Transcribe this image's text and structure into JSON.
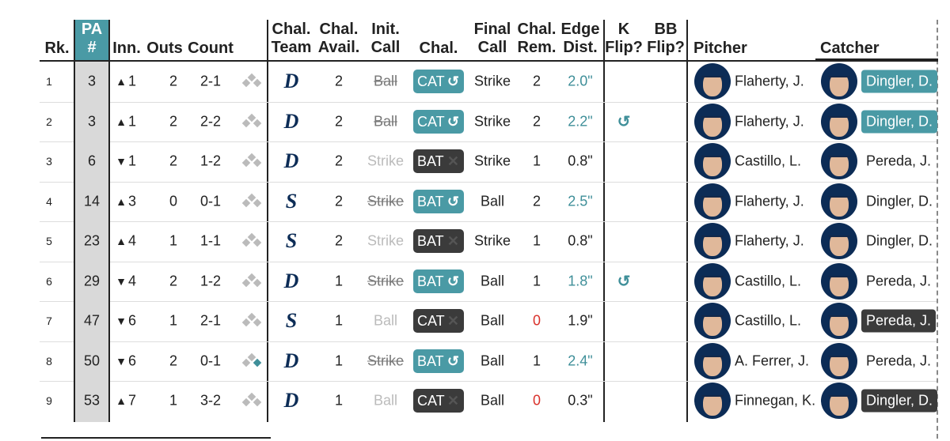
{
  "table": {
    "header": [
      {
        "key": "rk",
        "lines": [
          "Rk."
        ]
      },
      {
        "key": "pa",
        "lines": [
          "PA",
          "#"
        ]
      },
      {
        "key": "inn",
        "lines": [
          "Inn."
        ]
      },
      {
        "key": "outs",
        "lines": [
          "Outs"
        ]
      },
      {
        "key": "count",
        "lines": [
          "Count"
        ]
      },
      {
        "key": "team",
        "lines": [
          "Chal.",
          "Team"
        ]
      },
      {
        "key": "avail",
        "lines": [
          "Chal.",
          "Avail."
        ]
      },
      {
        "key": "init",
        "lines": [
          "Init.",
          "Call"
        ]
      },
      {
        "key": "chal",
        "lines": [
          "Chal."
        ]
      },
      {
        "key": "final",
        "lines": [
          "Final",
          "Call"
        ]
      },
      {
        "key": "rem",
        "lines": [
          "Chal.",
          "Rem."
        ]
      },
      {
        "key": "edge",
        "lines": [
          "Edge",
          "Dist."
        ]
      },
      {
        "key": "kflip",
        "lines": [
          "K",
          "Flip?"
        ]
      },
      {
        "key": "bbflip",
        "lines": [
          "BB",
          "Flip?"
        ]
      },
      {
        "key": "pitcher",
        "lines": [
          "Pitcher"
        ]
      },
      {
        "key": "catcher",
        "lines": [
          "Catcher"
        ]
      }
    ],
    "rows": [
      {
        "rk": 1,
        "pa": 3,
        "half": "▲",
        "inn": 1,
        "outs": 2,
        "count": "2-1",
        "runner_on_first": false,
        "team": "D",
        "avail": 2,
        "init": "Ball",
        "init_struck": true,
        "chal": "CAT",
        "chal_icon": "↺",
        "overturned": true,
        "final": "Strike",
        "rem": 2,
        "edge": "2.0\"",
        "kflip": null,
        "bbflip": null,
        "pitcher": "Flaherty, J.",
        "catcher": "Dingler, D.",
        "catcher_highlight": "teal"
      },
      {
        "rk": 2,
        "pa": 3,
        "half": "▲",
        "inn": 1,
        "outs": 2,
        "count": "2-2",
        "runner_on_first": false,
        "team": "D",
        "avail": 2,
        "init": "Ball",
        "init_struck": true,
        "chal": "CAT",
        "chal_icon": "↺",
        "overturned": true,
        "final": "Strike",
        "rem": 2,
        "edge": "2.2\"",
        "kflip": "↺",
        "bbflip": null,
        "pitcher": "Flaherty, J.",
        "catcher": "Dingler, D.",
        "catcher_highlight": "teal"
      },
      {
        "rk": 3,
        "pa": 6,
        "half": "▼",
        "inn": 1,
        "outs": 2,
        "count": "1-2",
        "runner_on_first": false,
        "team": "D",
        "avail": 2,
        "init": "Strike",
        "init_struck": false,
        "chal": "BAT",
        "chal_icon": "✕",
        "overturned": false,
        "final": "Strike",
        "rem": 1,
        "edge": "0.8\"",
        "kflip": null,
        "bbflip": null,
        "pitcher": "Castillo, L.",
        "catcher": "Pereda, J.",
        "catcher_highlight": null
      },
      {
        "rk": 4,
        "pa": 14,
        "half": "▲",
        "inn": 3,
        "outs": 0,
        "count": "0-1",
        "runner_on_first": false,
        "team": "S",
        "avail": 2,
        "init": "Strike",
        "init_struck": true,
        "chal": "BAT",
        "chal_icon": "↺",
        "overturned": true,
        "final": "Ball",
        "rem": 2,
        "edge": "2.5\"",
        "kflip": null,
        "bbflip": null,
        "pitcher": "Flaherty, J.",
        "catcher": "Dingler, D.",
        "catcher_highlight": null
      },
      {
        "rk": 5,
        "pa": 23,
        "half": "▲",
        "inn": 4,
        "outs": 1,
        "count": "1-1",
        "runner_on_first": false,
        "team": "S",
        "avail": 2,
        "init": "Strike",
        "init_struck": false,
        "chal": "BAT",
        "chal_icon": "✕",
        "overturned": false,
        "final": "Strike",
        "rem": 1,
        "edge": "0.8\"",
        "kflip": null,
        "bbflip": null,
        "pitcher": "Flaherty, J.",
        "catcher": "Dingler, D.",
        "catcher_highlight": null
      },
      {
        "rk": 6,
        "pa": 29,
        "half": "▼",
        "inn": 4,
        "outs": 2,
        "count": "1-2",
        "runner_on_first": false,
        "team": "D",
        "avail": 1,
        "init": "Strike",
        "init_struck": true,
        "chal": "BAT",
        "chal_icon": "↺",
        "overturned": true,
        "final": "Ball",
        "rem": 1,
        "edge": "1.8\"",
        "kflip": "↺",
        "bbflip": null,
        "pitcher": "Castillo, L.",
        "catcher": "Pereda, J.",
        "catcher_highlight": null
      },
      {
        "rk": 7,
        "pa": 47,
        "half": "▼",
        "inn": 6,
        "outs": 1,
        "count": "2-1",
        "runner_on_first": false,
        "team": "S",
        "avail": 1,
        "init": "Ball",
        "init_struck": false,
        "chal": "CAT",
        "chal_icon": "✕",
        "overturned": false,
        "final": "Ball",
        "rem": 0,
        "edge": "1.9\"",
        "kflip": null,
        "bbflip": null,
        "pitcher": "Castillo, L.",
        "catcher": "Pereda, J.",
        "catcher_highlight": "dark"
      },
      {
        "rk": 8,
        "pa": 50,
        "half": "▼",
        "inn": 6,
        "outs": 2,
        "count": "0-1",
        "runner_on_first": true,
        "team": "D",
        "avail": 1,
        "init": "Strike",
        "init_struck": true,
        "chal": "BAT",
        "chal_icon": "↺",
        "overturned": true,
        "final": "Ball",
        "rem": 1,
        "edge": "2.4\"",
        "kflip": null,
        "bbflip": null,
        "pitcher": "A. Ferrer, J.",
        "catcher": "Pereda, J.",
        "catcher_highlight": null
      },
      {
        "rk": 9,
        "pa": 53,
        "half": "▲",
        "inn": 7,
        "outs": 1,
        "count": "3-2",
        "runner_on_first": false,
        "team": "D",
        "avail": 1,
        "init": "Ball",
        "init_struck": false,
        "chal": "CAT",
        "chal_icon": "✕",
        "overturned": false,
        "final": "Ball",
        "rem": 0,
        "edge": "0.3\"",
        "kflip": null,
        "bbflip": null,
        "pitcher": "Finnegan, K.",
        "catcher": "Dingler, D.",
        "catcher_highlight": "dark"
      }
    ]
  }
}
